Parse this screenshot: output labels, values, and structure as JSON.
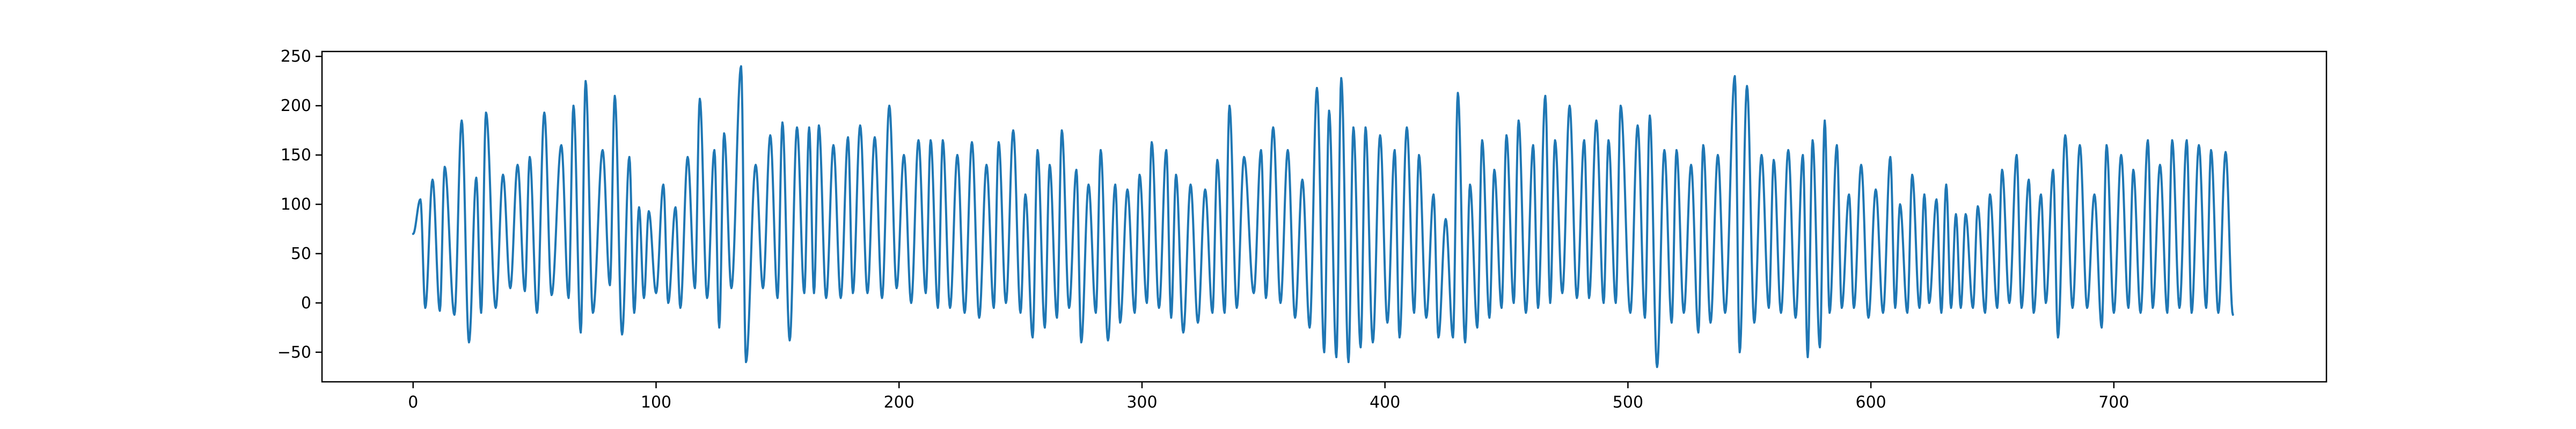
{
  "colors": {
    "series": "#1f77b4",
    "axes": "#000000",
    "background": "#ffffff"
  },
  "chart_data": {
    "type": "line",
    "title": "",
    "xlabel": "",
    "ylabel": "",
    "xlim": [
      -37.5,
      787.5
    ],
    "ylim": [
      -80,
      255
    ],
    "grid": false,
    "legend": "none",
    "x_ticks": [
      0,
      100,
      200,
      300,
      400,
      500,
      600,
      700
    ],
    "x_tick_labels": [
      "0",
      "100",
      "200",
      "300",
      "400",
      "500",
      "600",
      "700"
    ],
    "y_ticks": [
      -50,
      0,
      50,
      100,
      150,
      200,
      250
    ],
    "y_tick_labels": [
      "−50",
      "0",
      "50",
      "100",
      "150",
      "200",
      "250"
    ],
    "x_range": [
      0,
      749
    ],
    "series": [
      {
        "x_start": 0,
        "x_step": 1,
        "peaks": [
          [
            3,
            105,
            1.0
          ],
          [
            8,
            125,
            1.2
          ],
          [
            13,
            138,
            1.2
          ],
          [
            20,
            185,
            1.4
          ],
          [
            26,
            127,
            1.3
          ],
          [
            30,
            193,
            1.4
          ],
          [
            37,
            130,
            1.3
          ],
          [
            43,
            140,
            1.3
          ],
          [
            48,
            148,
            1.3
          ],
          [
            54,
            193,
            1.4
          ],
          [
            61,
            160,
            1.4
          ],
          [
            66,
            200,
            1.4
          ],
          [
            71,
            225,
            1.5
          ],
          [
            78,
            155,
            1.4
          ],
          [
            83,
            210,
            1.5
          ],
          [
            89,
            148,
            1.4
          ],
          [
            93,
            97,
            1.2
          ],
          [
            97,
            93,
            1.1
          ],
          [
            103,
            120,
            1.2
          ],
          [
            108,
            97,
            1.2
          ],
          [
            113,
            148,
            1.3
          ],
          [
            118,
            207,
            1.4
          ],
          [
            124,
            155,
            1.4
          ],
          [
            128,
            172,
            1.4
          ],
          [
            135,
            240,
            1.5
          ],
          [
            141,
            140,
            1.3
          ],
          [
            147,
            170,
            1.4
          ],
          [
            152,
            183,
            1.4
          ],
          [
            158,
            178,
            1.4
          ],
          [
            163,
            178,
            1.4
          ],
          [
            167,
            180,
            1.4
          ],
          [
            173,
            160,
            1.3
          ],
          [
            179,
            168,
            1.3
          ],
          [
            184,
            180,
            1.4
          ],
          [
            190,
            168,
            1.3
          ],
          [
            196,
            200,
            1.4
          ],
          [
            202,
            150,
            1.3
          ],
          [
            208,
            165,
            1.3
          ],
          [
            213,
            165,
            1.3
          ],
          [
            218,
            165,
            1.3
          ],
          [
            224,
            150,
            1.3
          ],
          [
            230,
            163,
            1.3
          ],
          [
            236,
            140,
            1.3
          ],
          [
            241,
            163,
            1.3
          ],
          [
            247,
            175,
            1.4
          ],
          [
            252,
            110,
            1.2
          ],
          [
            257,
            155,
            1.3
          ],
          [
            262,
            140,
            1.3
          ],
          [
            267,
            175,
            1.4
          ],
          [
            273,
            135,
            1.3
          ],
          [
            278,
            120,
            1.2
          ],
          [
            283,
            155,
            1.3
          ],
          [
            289,
            120,
            1.2
          ],
          [
            294,
            115,
            1.2
          ],
          [
            299,
            130,
            1.3
          ],
          [
            304,
            163,
            1.3
          ],
          [
            310,
            155,
            1.3
          ],
          [
            314,
            130,
            1.3
          ],
          [
            320,
            120,
            1.2
          ],
          [
            326,
            115,
            1.2
          ],
          [
            331,
            145,
            1.3
          ],
          [
            336,
            200,
            1.4
          ],
          [
            342,
            148,
            1.3
          ],
          [
            349,
            155,
            1.3
          ],
          [
            354,
            178,
            1.4
          ],
          [
            360,
            155,
            1.3
          ],
          [
            366,
            125,
            1.2
          ],
          [
            372,
            218,
            1.5
          ],
          [
            377,
            195,
            1.4
          ],
          [
            382,
            228,
            1.5
          ],
          [
            387,
            178,
            1.4
          ],
          [
            392,
            178,
            1.4
          ],
          [
            398,
            170,
            1.4
          ],
          [
            404,
            155,
            1.3
          ],
          [
            409,
            178,
            1.4
          ],
          [
            414,
            150,
            1.3
          ],
          [
            420,
            110,
            1.2
          ],
          [
            425,
            85,
            1.1
          ],
          [
            430,
            213,
            1.5
          ],
          [
            435,
            120,
            1.2
          ],
          [
            440,
            165,
            1.3
          ],
          [
            445,
            135,
            1.3
          ],
          [
            450,
            170,
            1.4
          ],
          [
            455,
            185,
            1.4
          ],
          [
            461,
            160,
            1.3
          ],
          [
            466,
            210,
            1.5
          ],
          [
            470,
            165,
            1.3
          ],
          [
            476,
            200,
            1.4
          ],
          [
            482,
            165,
            1.3
          ],
          [
            487,
            185,
            1.4
          ],
          [
            492,
            165,
            1.3
          ],
          [
            497,
            200,
            1.4
          ],
          [
            504,
            180,
            1.4
          ],
          [
            509,
            190,
            1.4
          ],
          [
            515,
            155,
            1.3
          ],
          [
            520,
            155,
            1.3
          ],
          [
            526,
            140,
            1.3
          ],
          [
            531,
            160,
            1.3
          ],
          [
            537,
            150,
            1.3
          ],
          [
            544,
            230,
            1.5
          ],
          [
            549,
            220,
            1.5
          ],
          [
            555,
            150,
            1.3
          ],
          [
            560,
            145,
            1.3
          ],
          [
            566,
            155,
            1.3
          ],
          [
            572,
            150,
            1.3
          ],
          [
            576,
            165,
            1.3
          ],
          [
            581,
            185,
            1.4
          ],
          [
            586,
            160,
            1.3
          ],
          [
            591,
            110,
            1.2
          ],
          [
            596,
            140,
            1.3
          ],
          [
            602,
            115,
            1.2
          ],
          [
            608,
            148,
            1.3
          ],
          [
            612,
            100,
            1.2
          ],
          [
            617,
            130,
            1.3
          ],
          [
            622,
            110,
            1.2
          ],
          [
            627,
            105,
            1.2
          ],
          [
            631,
            120,
            1.2
          ],
          [
            635,
            90,
            1.1
          ],
          [
            639,
            90,
            1.1
          ],
          [
            644,
            98,
            1.1
          ],
          [
            649,
            110,
            1.2
          ],
          [
            654,
            135,
            1.3
          ],
          [
            660,
            150,
            1.3
          ],
          [
            665,
            125,
            1.3
          ],
          [
            670,
            110,
            1.2
          ],
          [
            675,
            135,
            1.3
          ],
          [
            680,
            170,
            1.4
          ],
          [
            686,
            160,
            1.3
          ],
          [
            692,
            110,
            1.2
          ],
          [
            697,
            160,
            1.3
          ],
          [
            703,
            150,
            1.3
          ],
          [
            708,
            135,
            1.3
          ],
          [
            714,
            165,
            1.4
          ],
          [
            719,
            140,
            1.3
          ],
          [
            724,
            165,
            1.4
          ],
          [
            730,
            165,
            1.4
          ],
          [
            735,
            160,
            1.3
          ],
          [
            740,
            155,
            1.3
          ],
          [
            746,
            153,
            1.3
          ]
        ],
        "troughs": [
          [
            5,
            -5
          ],
          [
            11,
            -8
          ],
          [
            17,
            -12
          ],
          [
            23,
            -40
          ],
          [
            28,
            -10
          ],
          [
            34,
            -5
          ],
          [
            40,
            15
          ],
          [
            46,
            12
          ],
          [
            51,
            -10
          ],
          [
            57,
            8
          ],
          [
            64,
            5
          ],
          [
            69,
            -30
          ],
          [
            74,
            -10
          ],
          [
            81,
            18
          ],
          [
            86,
            -32
          ],
          [
            91,
            -10
          ],
          [
            95,
            5
          ],
          [
            100,
            10
          ],
          [
            105,
            0
          ],
          [
            110,
            -5
          ],
          [
            116,
            15
          ],
          [
            121,
            5
          ],
          [
            126,
            -25
          ],
          [
            131,
            15
          ],
          [
            137,
            -60
          ],
          [
            144,
            15
          ],
          [
            150,
            5
          ],
          [
            155,
            -38
          ],
          [
            161,
            10
          ],
          [
            165,
            10
          ],
          [
            170,
            5
          ],
          [
            176,
            5
          ],
          [
            181,
            10
          ],
          [
            187,
            10
          ],
          [
            193,
            5
          ],
          [
            199,
            15
          ],
          [
            205,
            0
          ],
          [
            211,
            10
          ],
          [
            216,
            -5
          ],
          [
            221,
            -5
          ],
          [
            227,
            -10
          ],
          [
            233,
            -15
          ],
          [
            239,
            -5
          ],
          [
            244,
            0
          ],
          [
            250,
            -10
          ],
          [
            255,
            -35
          ],
          [
            260,
            -25
          ],
          [
            265,
            -15
          ],
          [
            270,
            -5
          ],
          [
            275,
            -40
          ],
          [
            281,
            -10
          ],
          [
            286,
            -38
          ],
          [
            291,
            -20
          ],
          [
            297,
            -10
          ],
          [
            302,
            0
          ],
          [
            307,
            -5
          ],
          [
            312,
            -15
          ],
          [
            317,
            -30
          ],
          [
            323,
            -20
          ],
          [
            329,
            -10
          ],
          [
            334,
            -10
          ],
          [
            339,
            -5
          ],
          [
            346,
            10
          ],
          [
            351,
            5
          ],
          [
            357,
            0
          ],
          [
            363,
            -15
          ],
          [
            369,
            -25
          ],
          [
            375,
            -50
          ],
          [
            380,
            -55
          ],
          [
            385,
            -60
          ],
          [
            390,
            -45
          ],
          [
            395,
            -40
          ],
          [
            401,
            -20
          ],
          [
            406,
            -35
          ],
          [
            412,
            -10
          ],
          [
            417,
            -15
          ],
          [
            422,
            -35
          ],
          [
            428,
            -35
          ],
          [
            433,
            -40
          ],
          [
            438,
            -25
          ],
          [
            443,
            -15
          ],
          [
            448,
            -5
          ],
          [
            453,
            0
          ],
          [
            458,
            -10
          ],
          [
            463,
            -5
          ],
          [
            468,
            0
          ],
          [
            473,
            10
          ],
          [
            479,
            5
          ],
          [
            484,
            5
          ],
          [
            490,
            0
          ],
          [
            495,
            0
          ],
          [
            501,
            -10
          ],
          [
            507,
            -15
          ],
          [
            512,
            -65
          ],
          [
            518,
            -20
          ],
          [
            523,
            -10
          ],
          [
            529,
            -30
          ],
          [
            534,
            -20
          ],
          [
            540,
            -10
          ],
          [
            546,
            -50
          ],
          [
            552,
            -20
          ],
          [
            558,
            -5
          ],
          [
            563,
            -10
          ],
          [
            569,
            -15
          ],
          [
            574,
            -55
          ],
          [
            579,
            -45
          ],
          [
            583,
            -10
          ],
          [
            588,
            -5
          ],
          [
            593,
            -5
          ],
          [
            599,
            -15
          ],
          [
            605,
            -10
          ],
          [
            610,
            -5
          ],
          [
            615,
            -10
          ],
          [
            620,
            -5
          ],
          [
            624,
            0
          ],
          [
            629,
            -10
          ],
          [
            633,
            -5
          ],
          [
            637,
            -5
          ],
          [
            642,
            -5
          ],
          [
            647,
            -10
          ],
          [
            652,
            -5
          ],
          [
            657,
            0
          ],
          [
            662,
            -5
          ],
          [
            667,
            -10
          ],
          [
            672,
            0
          ],
          [
            677,
            -35
          ],
          [
            683,
            -5
          ],
          [
            689,
            -5
          ],
          [
            695,
            -25
          ],
          [
            700,
            -10
          ],
          [
            706,
            -5
          ],
          [
            711,
            -10
          ],
          [
            716,
            -5
          ],
          [
            722,
            -10
          ],
          [
            727,
            -5
          ],
          [
            732,
            -10
          ],
          [
            738,
            -5
          ],
          [
            743,
            -10
          ],
          [
            749,
            -12
          ]
        ],
        "start_value": 70,
        "end_value": -12
      }
    ]
  }
}
